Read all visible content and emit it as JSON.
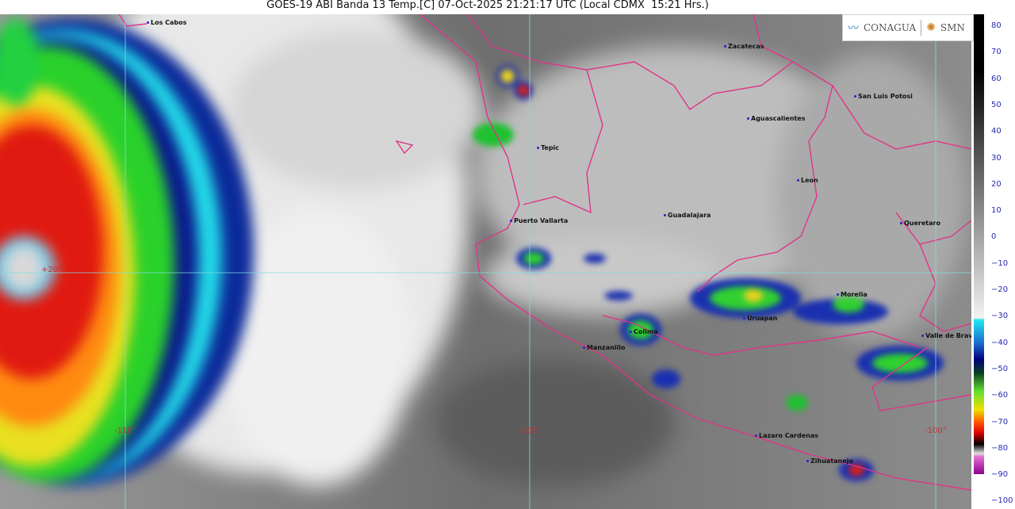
{
  "title": "GOES-19 ABI Banda 13 Temp.[C] 07-Oct-2025 21:21:17 UTC (Local CDMX  15:21 Hrs.)",
  "logo": {
    "left": "CONAGUA",
    "right": "SMN"
  },
  "colors": {
    "borders": "#e0348a",
    "grid": "#7fdede",
    "grid_labels": "#c83232",
    "tick_labels": "#2b2bb0"
  },
  "grid_labels": {
    "lon_110": "-110°",
    "lon_105": "-105°",
    "lon_100": "-100°",
    "lat_20": "+20°"
  },
  "cities": [
    {
      "name": "Los Cabos"
    },
    {
      "name": "Zacatecas"
    },
    {
      "name": "San Luis Potosi"
    },
    {
      "name": "Aguascalientes"
    },
    {
      "name": "Tepic"
    },
    {
      "name": "Leon"
    },
    {
      "name": "Guadalajara"
    },
    {
      "name": "Queretaro"
    },
    {
      "name": "Puerto Vallarta"
    },
    {
      "name": "Morelia"
    },
    {
      "name": "Uruapan"
    },
    {
      "name": "Colima"
    },
    {
      "name": "Valle de Brav"
    },
    {
      "name": "Manzanillo"
    },
    {
      "name": "Lazaro Cardenas"
    },
    {
      "name": "Zihuatanejo"
    }
  ],
  "colorbar": {
    "ticks": [
      "80",
      "70",
      "60",
      "50",
      "40",
      "30",
      "20",
      "10",
      "0",
      "−10",
      "−20",
      "−30",
      "−40",
      "−50",
      "−60",
      "−70",
      "−80",
      "−90",
      "−100"
    ]
  }
}
